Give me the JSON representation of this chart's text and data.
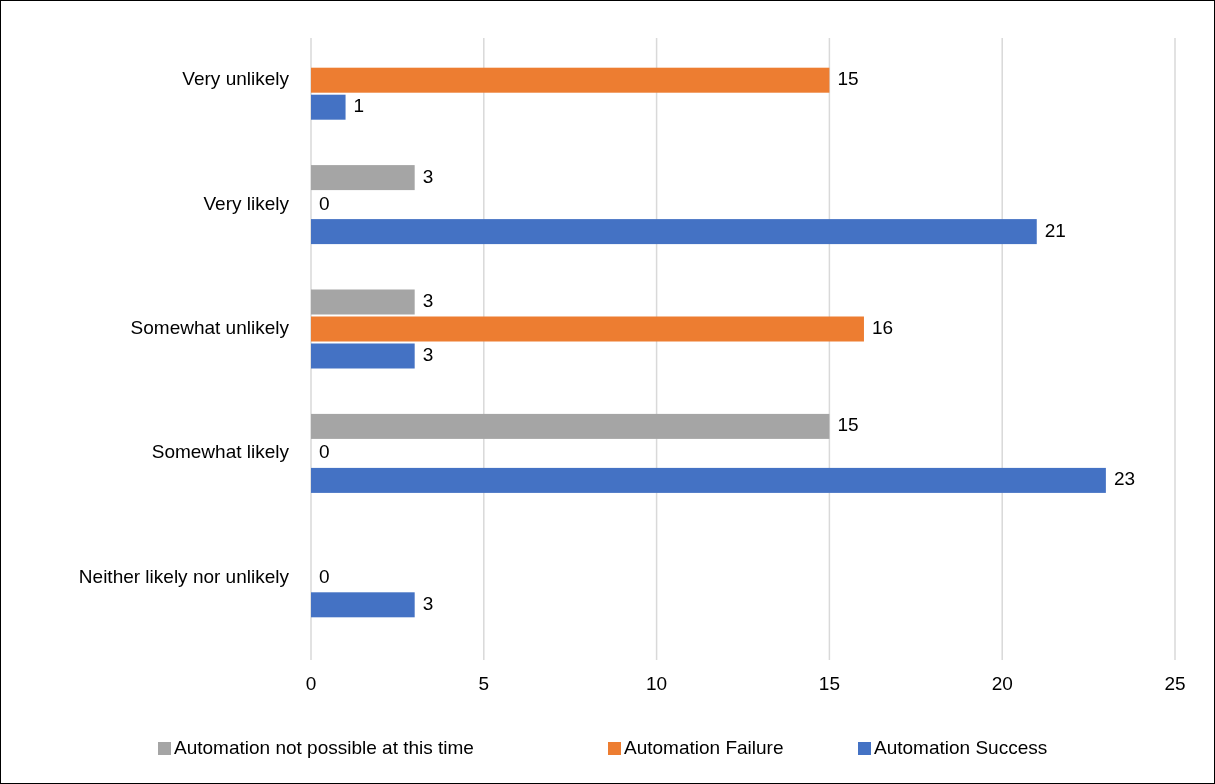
{
  "chart_data": {
    "type": "bar",
    "orientation": "horizontal",
    "categories": [
      "Very unlikely",
      "Very likely",
      "Somewhat unlikely",
      "Somewhat likely",
      "Neither likely nor unlikely"
    ],
    "series": [
      {
        "name": "Automation not possible at this time",
        "color": "#a5a5a5",
        "values": [
          null,
          3,
          3,
          15,
          null
        ]
      },
      {
        "name": "Automation Failure",
        "color": "#ed7d31",
        "values": [
          15,
          0,
          16,
          0,
          0
        ]
      },
      {
        "name": "Automation Success",
        "color": "#4472c4",
        "values": [
          1,
          21,
          3,
          23,
          3
        ]
      }
    ],
    "xlim": [
      0,
      25
    ],
    "xticks": [
      0,
      5,
      10,
      15,
      20,
      25
    ],
    "grid": "x",
    "legend": "bottom",
    "data_labels": true
  }
}
